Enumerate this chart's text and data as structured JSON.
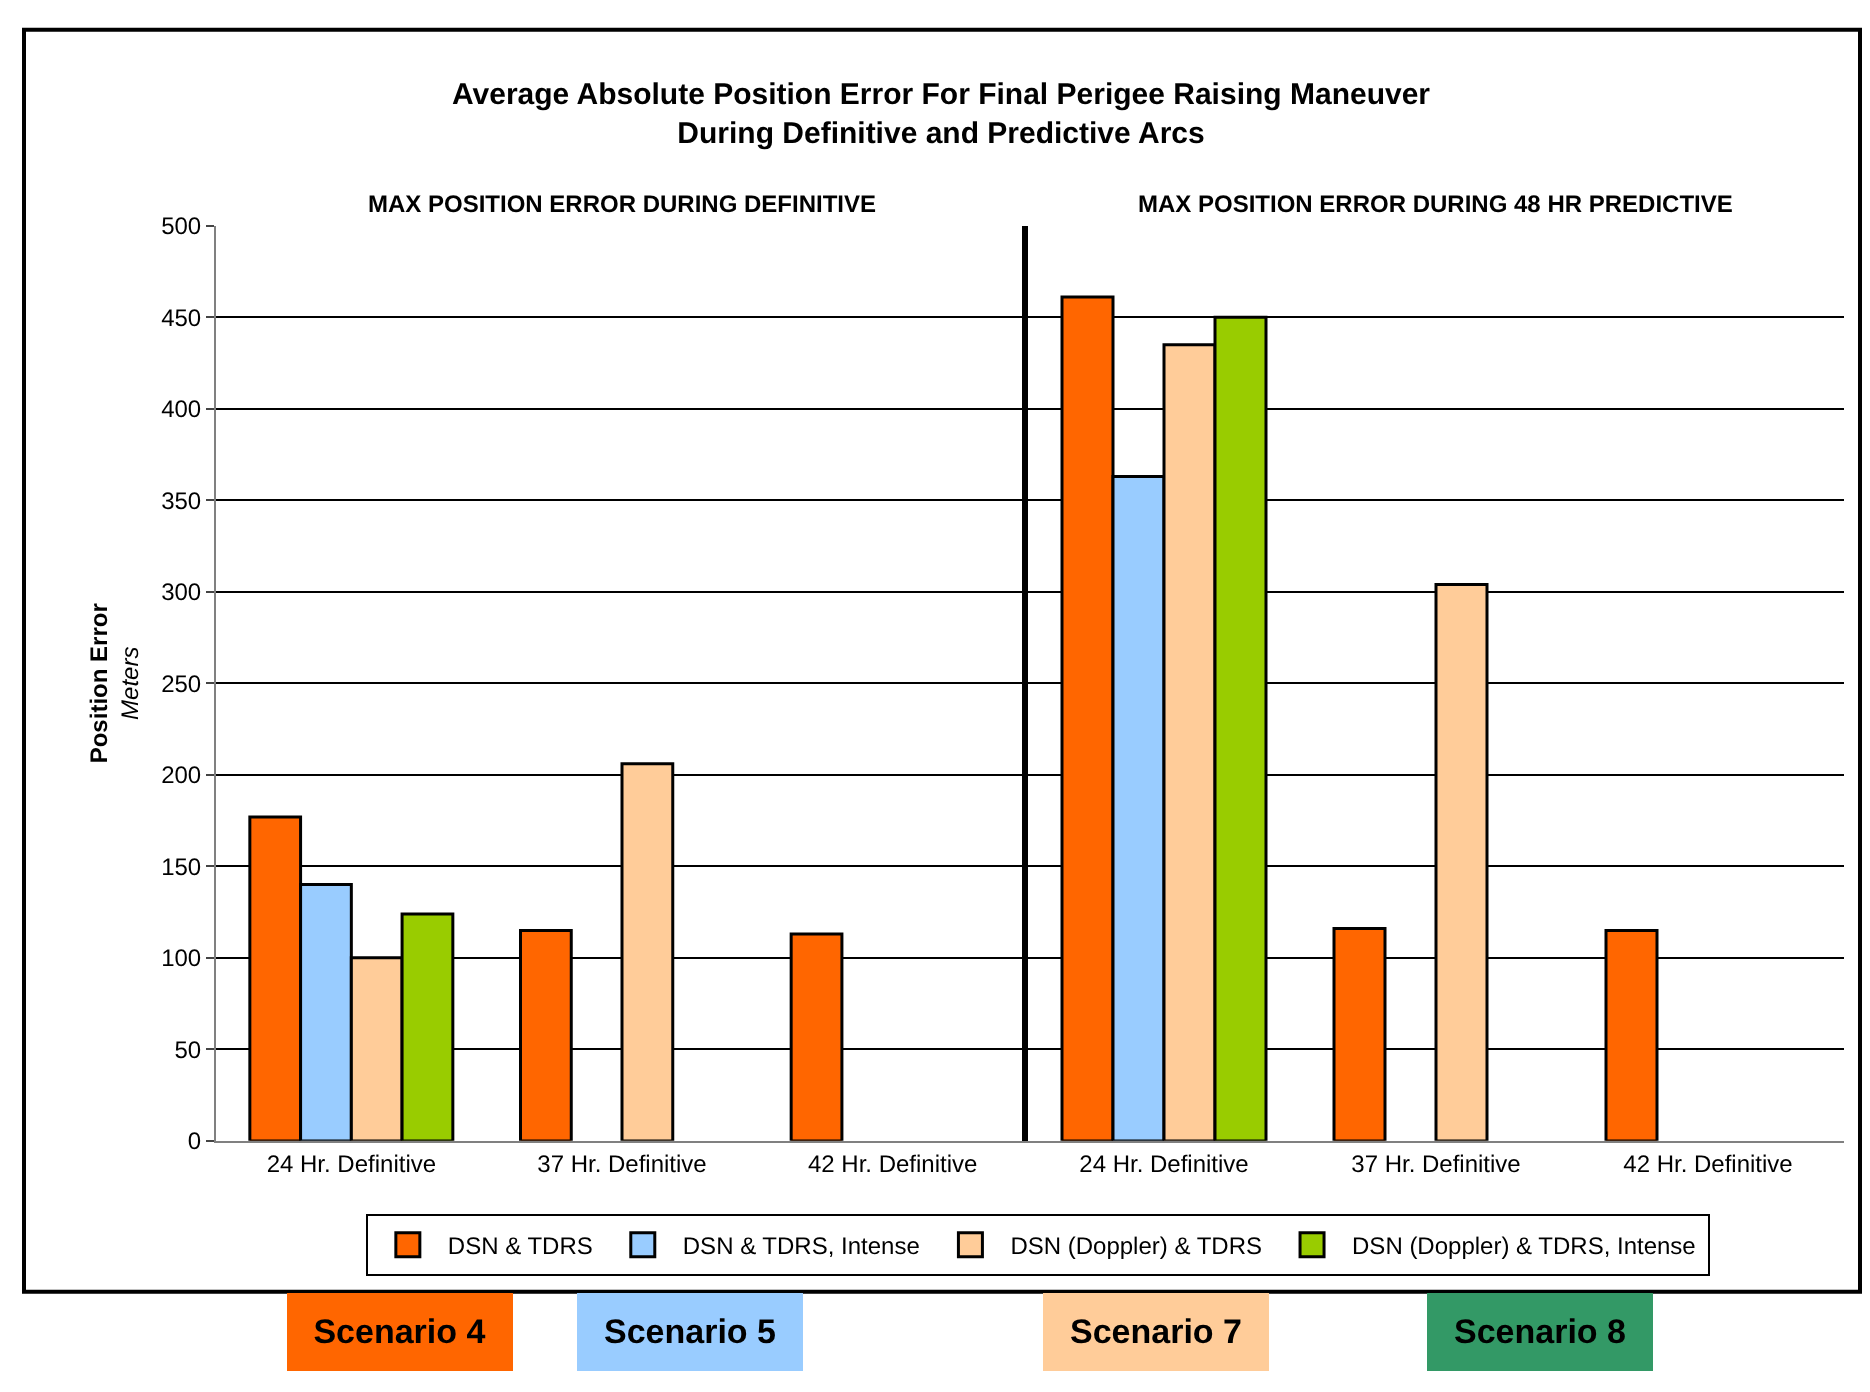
{
  "chart_data": [
    {
      "type": "bar",
      "title": "Average Absolute Position Error For Final Perigee Raising Maneuver\nDuring Definitive and Predictive Arcs",
      "subtitle": "MAX POSITION ERROR DURING DEFINITIVE",
      "ylabel": "Position Error\nMeters",
      "categories": [
        "24 Hr. Definitive",
        "37 Hr. Definitive",
        "42 Hr. Definitive"
      ],
      "series": [
        {
          "name": "DSN & TDRS",
          "color": "#ff6600",
          "values": [
            177,
            115,
            113
          ]
        },
        {
          "name": "DSN & TDRS, Intense",
          "color": "#99ccff",
          "values": [
            140,
            null,
            null
          ]
        },
        {
          "name": "DSN (Doppler) & TDRS",
          "color": "#ffcc99",
          "values": [
            100,
            206,
            null
          ]
        },
        {
          "name": "DSN (Doppler) & TDRS, Intense",
          "color": "#99cc00",
          "values": [
            124,
            null,
            null
          ]
        }
      ],
      "ylim": [
        0,
        500
      ],
      "yticks": [
        0,
        50,
        100,
        150,
        200,
        250,
        300,
        350,
        400,
        450,
        500
      ],
      "grid": "y",
      "legend": "bottom",
      "annotations": [
        "Scenario 4",
        "Scenario 5",
        "Scenario 7",
        "Scenario 8"
      ]
    },
    {
      "type": "bar",
      "subtitle": "MAX POSITION ERROR DURING 48 HR PREDICTIVE",
      "categories": [
        "24 Hr. Definitive",
        "37 Hr. Definitive",
        "42 Hr. Definitive"
      ],
      "series": [
        {
          "color": "#ff6600",
          "values": [
            461,
            116,
            115
          ]
        },
        {
          "color": "#99ccff",
          "values": [
            363,
            null,
            null
          ]
        },
        {
          "color": "#ffcc99",
          "values": [
            435,
            304,
            null
          ]
        },
        {
          "color": "#99cc00",
          "values": [
            450,
            null,
            null
          ]
        }
      ],
      "ylim": [
        0,
        500
      ],
      "yticks": [
        0,
        50,
        100,
        150,
        200,
        250,
        300,
        350,
        400,
        450,
        500
      ],
      "grid": "y",
      "tick_labels": "x"
    }
  ]
}
